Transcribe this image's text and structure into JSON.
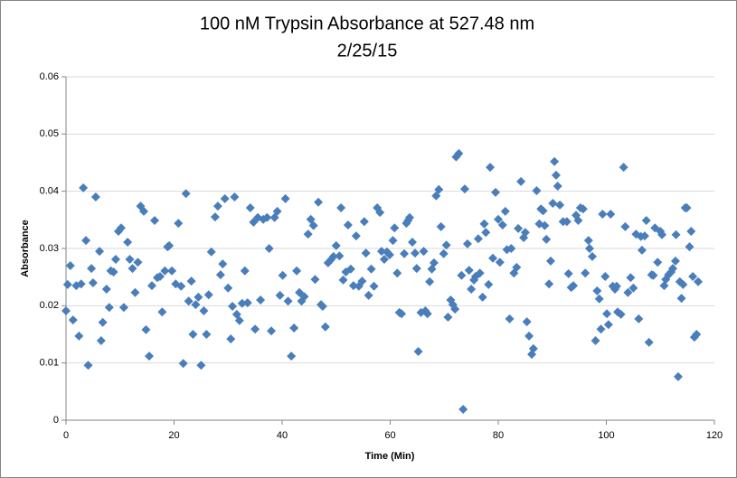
{
  "chart_data": {
    "type": "scatter",
    "title": "100 nM Trypsin Absorbance at 527.48 nm",
    "subtitle": "2/25/15",
    "xlabel": "Time (Min)",
    "ylabel": "Absorbance",
    "color": "#4a7ebb",
    "grid": true,
    "xlim": [
      0,
      120
    ],
    "xticks": [
      0,
      20,
      40,
      60,
      80,
      100,
      120
    ],
    "ylim": [
      0,
      0.06
    ],
    "yticks": [
      0,
      0.01,
      0.02,
      0.03,
      0.04,
      0.05,
      0.06
    ],
    "x": [
      0.0,
      0.3,
      0.8,
      1.3,
      1.9,
      2.4,
      2.8,
      3.2,
      3.7,
      4.1,
      4.7,
      5.0,
      5.5,
      6.2,
      6.5,
      6.8,
      7.5,
      8.0,
      8.3,
      8.8,
      9.2,
      9.7,
      10.2,
      10.7,
      11.4,
      11.8,
      12.3,
      12.8,
      13.3,
      13.8,
      14.4,
      14.8,
      15.4,
      15.9,
      16.4,
      16.9,
      17.4,
      17.8,
      18.3,
      18.8,
      19.1,
      19.6,
      20.3,
      20.8,
      21.3,
      21.7,
      22.2,
      22.7,
      23.2,
      23.5,
      24.0,
      24.5,
      25.0,
      25.5,
      26.0,
      26.4,
      26.9,
      27.6,
      28.1,
      28.6,
      29.0,
      29.4,
      30.0,
      30.5,
      30.8,
      31.2,
      31.6,
      32.1,
      32.6,
      33.1,
      33.6,
      34.1,
      34.7,
      35.0,
      35.5,
      36.0,
      36.5,
      37.2,
      37.6,
      38.0,
      38.6,
      39.1,
      39.6,
      40.1,
      40.6,
      41.1,
      41.7,
      42.2,
      42.7,
      43.2,
      43.6,
      44.1,
      44.8,
      45.3,
      45.8,
      46.1,
      46.7,
      47.2,
      47.5,
      48.0,
      48.5,
      49.0,
      49.5,
      50.0,
      50.6,
      50.9,
      51.3,
      51.8,
      52.2,
      52.7,
      53.2,
      53.7,
      54.2,
      54.8,
      55.2,
      55.5,
      56.0,
      56.5,
      57.0,
      57.6,
      58.1,
      58.4,
      58.9,
      59.4,
      59.9,
      60.5,
      60.8,
      61.3,
      61.7,
      62.1,
      62.6,
      63.0,
      63.3,
      63.6,
      64.1,
      64.6,
      64.9,
      65.2,
      65.7,
      66.2,
      66.5,
      66.9,
      67.3,
      67.7,
      68.1,
      68.5,
      69.0,
      69.4,
      69.9,
      70.4,
      70.7,
      71.2,
      71.6,
      72.0,
      72.2,
      72.7,
      73.2,
      73.5,
      73.8,
      74.3,
      74.6,
      75.0,
      75.5,
      75.8,
      76.3,
      76.6,
      77.1,
      77.4,
      77.7,
      78.2,
      78.5,
      79.0,
      79.5,
      80.0,
      80.3,
      80.8,
      81.3,
      81.6,
      82.1,
      82.4,
      82.9,
      83.4,
      83.7,
      84.2,
      84.7,
      85.0,
      85.3,
      85.7,
      86.2,
      86.5,
      87.1,
      87.6,
      87.9,
      88.3,
      88.6,
      88.9,
      89.4,
      89.7,
      90.1,
      90.4,
      90.7,
      91.0,
      91.4,
      92.0,
      92.7,
      93.0,
      93.5,
      93.9,
      94.4,
      94.8,
      95.2,
      95.7,
      96.1,
      96.7,
      96.9,
      97.4,
      98.0,
      98.3,
      98.7,
      99.0,
      99.3,
      99.8,
      100.1,
      100.4,
      100.8,
      101.2,
      101.6,
      101.9,
      102.1,
      102.7,
      103.2,
      103.5,
      104.0,
      104.5,
      105.0,
      105.5,
      106.0,
      106.4,
      106.6,
      107.1,
      107.4,
      107.9,
      108.4,
      108.7,
      109.0,
      109.5,
      110.0,
      110.3,
      110.7,
      111.0,
      111.5,
      112.0,
      112.3,
      112.8,
      112.9,
      113.3,
      113.6,
      113.9,
      114.2,
      114.6,
      114.9,
      115.4,
      115.7,
      116.0,
      116.3,
      116.7,
      117.0
    ],
    "values": [
      0.0191,
      0.0237,
      0.027,
      0.0175,
      0.0235,
      0.0147,
      0.0238,
      0.0406,
      0.0314,
      0.0096,
      0.0265,
      0.024,
      0.039,
      0.0295,
      0.0139,
      0.0171,
      0.0229,
      0.0197,
      0.0261,
      0.0259,
      0.0281,
      0.033,
      0.0336,
      0.0197,
      0.0311,
      0.0281,
      0.0265,
      0.0223,
      0.0276,
      0.0374,
      0.0365,
      0.0158,
      0.0112,
      0.0235,
      0.0349,
      0.0249,
      0.0251,
      0.0189,
      0.0261,
      0.0303,
      0.0305,
      0.0261,
      0.0238,
      0.0344,
      0.0234,
      0.0099,
      0.0396,
      0.0208,
      0.0243,
      0.015,
      0.0202,
      0.0215,
      0.0096,
      0.0191,
      0.015,
      0.0219,
      0.0294,
      0.0355,
      0.0374,
      0.0254,
      0.0273,
      0.0387,
      0.0231,
      0.0142,
      0.0199,
      0.039,
      0.0185,
      0.0174,
      0.0204,
      0.0261,
      0.0205,
      0.0371,
      0.0346,
      0.0159,
      0.0354,
      0.021,
      0.0351,
      0.0354,
      0.03,
      0.0156,
      0.0354,
      0.0365,
      0.0218,
      0.0253,
      0.0387,
      0.0208,
      0.0112,
      0.0161,
      0.0261,
      0.0223,
      0.0208,
      0.0216,
      0.0325,
      0.0351,
      0.034,
      0.0246,
      0.0381,
      0.0202,
      0.0199,
      0.0163,
      0.0275,
      0.028,
      0.0286,
      0.0305,
      0.0287,
      0.0371,
      0.0245,
      0.0259,
      0.0341,
      0.0264,
      0.0235,
      0.0322,
      0.0234,
      0.0243,
      0.0347,
      0.0292,
      0.0218,
      0.0264,
      0.0234,
      0.0371,
      0.0363,
      0.0295,
      0.0281,
      0.0294,
      0.0289,
      0.0314,
      0.0336,
      0.0257,
      0.0188,
      0.0186,
      0.0291,
      0.0344,
      0.0349,
      0.0354,
      0.0311,
      0.0292,
      0.0265,
      0.012,
      0.0188,
      0.0295,
      0.0191,
      0.0186,
      0.0242,
      0.0264,
      0.0275,
      0.0392,
      0.0403,
      0.0338,
      0.0291,
      0.0306,
      0.018,
      0.021,
      0.0202,
      0.0194,
      0.046,
      0.0466,
      0.0253,
      0.0019,
      0.0404,
      0.0308,
      0.0262,
      0.0229,
      0.0245,
      0.0251,
      0.0317,
      0.0257,
      0.0215,
      0.0343,
      0.0328,
      0.0237,
      0.0442,
      0.0283,
      0.0398,
      0.0351,
      0.0276,
      0.0341,
      0.0365,
      0.0298,
      0.0177,
      0.03,
      0.0257,
      0.0267,
      0.0335,
      0.0417,
      0.0319,
      0.0328,
      0.0172,
      0.0147,
      0.0115,
      0.0125,
      0.0401,
      0.0343,
      0.0369,
      0.0366,
      0.034,
      0.0316,
      0.0238,
      0.0278,
      0.0379,
      0.0452,
      0.0428,
      0.0409,
      0.0376,
      0.0347,
      0.0347,
      0.0256,
      0.0232,
      0.0235,
      0.0358,
      0.0349,
      0.0371,
      0.0369,
      0.0257,
      0.0314,
      0.03,
      0.0286,
      0.0139,
      0.0226,
      0.0212,
      0.0159,
      0.036,
      0.0251,
      0.0186,
      0.0167,
      0.036,
      0.0234,
      0.0229,
      0.0234,
      0.0189,
      0.0185,
      0.0442,
      0.0338,
      0.0223,
      0.0249,
      0.0231,
      0.0325,
      0.0177,
      0.0321,
      0.0297,
      0.0322,
      0.0349,
      0.0136,
      0.0254,
      0.0253,
      0.0336,
      0.0276,
      0.033,
      0.0324,
      0.0235,
      0.0246,
      0.0254,
      0.0259,
      0.0265,
      0.0278,
      0.0324,
      0.0076,
      0.0242,
      0.0213,
      0.0237,
      0.0371,
      0.0371,
      0.0303,
      0.033,
      0.0251,
      0.0145,
      0.015,
      0.0242
    ]
  }
}
